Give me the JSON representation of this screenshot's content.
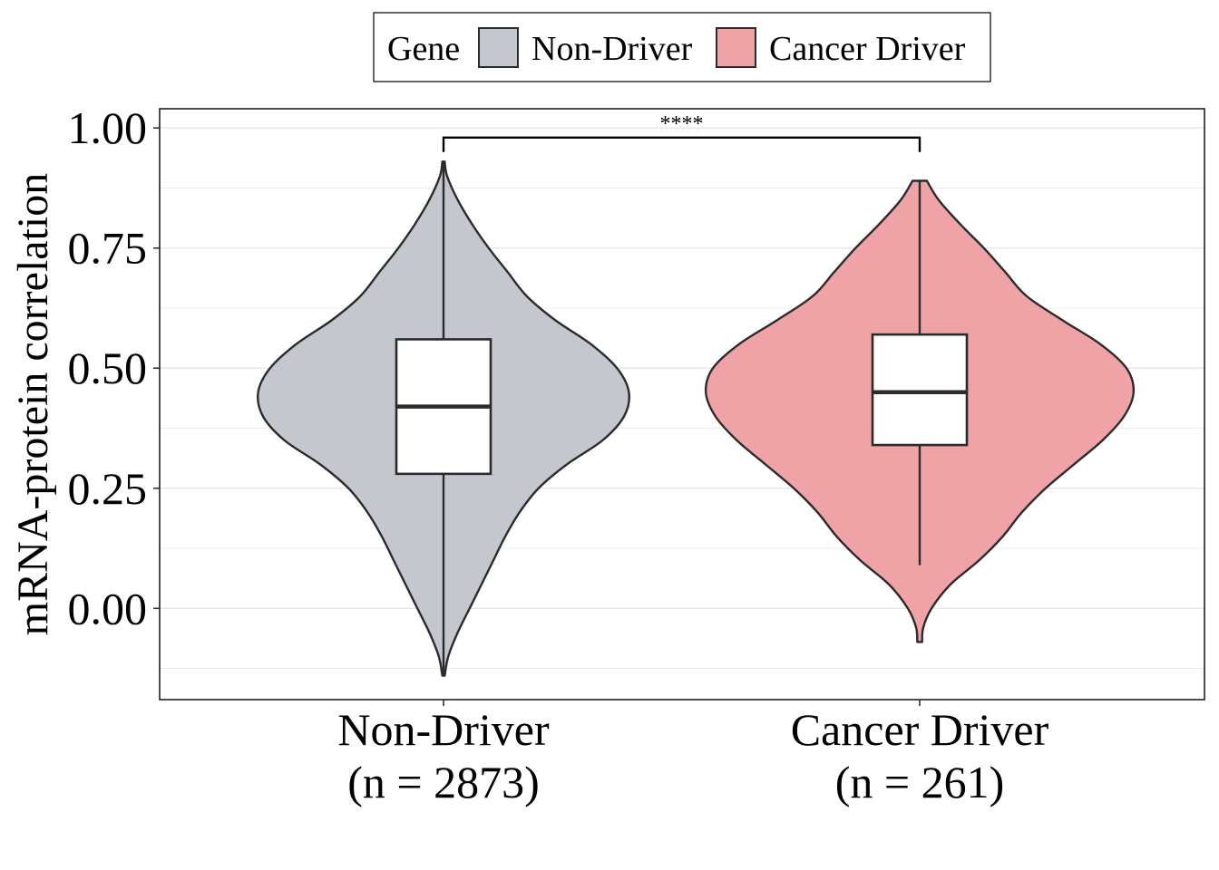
{
  "chart_data": {
    "type": "violin",
    "legend": {
      "title": "Gene",
      "position": "top",
      "entries": [
        {
          "label": "Non-Driver",
          "color": "#c4c8ce"
        },
        {
          "label": "Cancer Driver",
          "color": "#f0a3a6"
        }
      ]
    },
    "ylabel": "mRNA-protein correlation",
    "ylim": [
      -0.19,
      1.04
    ],
    "yticks": [
      0.0,
      0.25,
      0.5,
      0.75,
      1.0
    ],
    "ytick_labels": [
      "0.00",
      "0.25",
      "0.50",
      "0.75",
      "1.00"
    ],
    "grid": true,
    "categories": [
      {
        "line1": "Non-Driver",
        "line2": "(n = 2873)"
      },
      {
        "line1": "Cancer Driver",
        "line2": "(n = 261)"
      }
    ],
    "series": [
      {
        "name": "Non-Driver",
        "color": "#c4c8ce",
        "box": {
          "whisker_low": -0.14,
          "q1": 0.28,
          "median": 0.42,
          "q3": 0.56,
          "whisker_high": 0.93
        },
        "violin": {
          "min": -0.14,
          "max": 0.93,
          "profile": [
            [
              -0.14,
              0.005
            ],
            [
              -0.1,
              0.02
            ],
            [
              -0.05,
              0.06
            ],
            [
              0.0,
              0.11
            ],
            [
              0.05,
              0.16
            ],
            [
              0.1,
              0.21
            ],
            [
              0.15,
              0.26
            ],
            [
              0.2,
              0.32
            ],
            [
              0.25,
              0.4
            ],
            [
              0.3,
              0.52
            ],
            [
              0.35,
              0.67
            ],
            [
              0.4,
              0.76
            ],
            [
              0.45,
              0.78
            ],
            [
              0.5,
              0.73
            ],
            [
              0.55,
              0.62
            ],
            [
              0.6,
              0.47
            ],
            [
              0.65,
              0.35
            ],
            [
              0.7,
              0.27
            ],
            [
              0.75,
              0.19
            ],
            [
              0.8,
              0.12
            ],
            [
              0.85,
              0.06
            ],
            [
              0.9,
              0.015
            ],
            [
              0.93,
              0.005
            ]
          ]
        }
      },
      {
        "name": "Cancer Driver",
        "color": "#f0a3a6",
        "box": {
          "whisker_low": 0.09,
          "q1": 0.34,
          "median": 0.45,
          "q3": 0.57,
          "whisker_high": 0.89
        },
        "violin": {
          "min": -0.07,
          "max": 0.89,
          "profile": [
            [
              -0.07,
              0.01
            ],
            [
              -0.04,
              0.015
            ],
            [
              0.0,
              0.05
            ],
            [
              0.05,
              0.13
            ],
            [
              0.1,
              0.25
            ],
            [
              0.15,
              0.35
            ],
            [
              0.2,
              0.43
            ],
            [
              0.25,
              0.53
            ],
            [
              0.3,
              0.65
            ],
            [
              0.35,
              0.77
            ],
            [
              0.4,
              0.86
            ],
            [
              0.45,
              0.9
            ],
            [
              0.5,
              0.87
            ],
            [
              0.55,
              0.76
            ],
            [
              0.6,
              0.6
            ],
            [
              0.65,
              0.45
            ],
            [
              0.7,
              0.36
            ],
            [
              0.75,
              0.27
            ],
            [
              0.8,
              0.17
            ],
            [
              0.85,
              0.08
            ],
            [
              0.89,
              0.03
            ]
          ]
        }
      }
    ],
    "significance": {
      "label": "****",
      "from": 0,
      "to": 1,
      "y": 0.98,
      "tip_low": 0.95
    }
  }
}
